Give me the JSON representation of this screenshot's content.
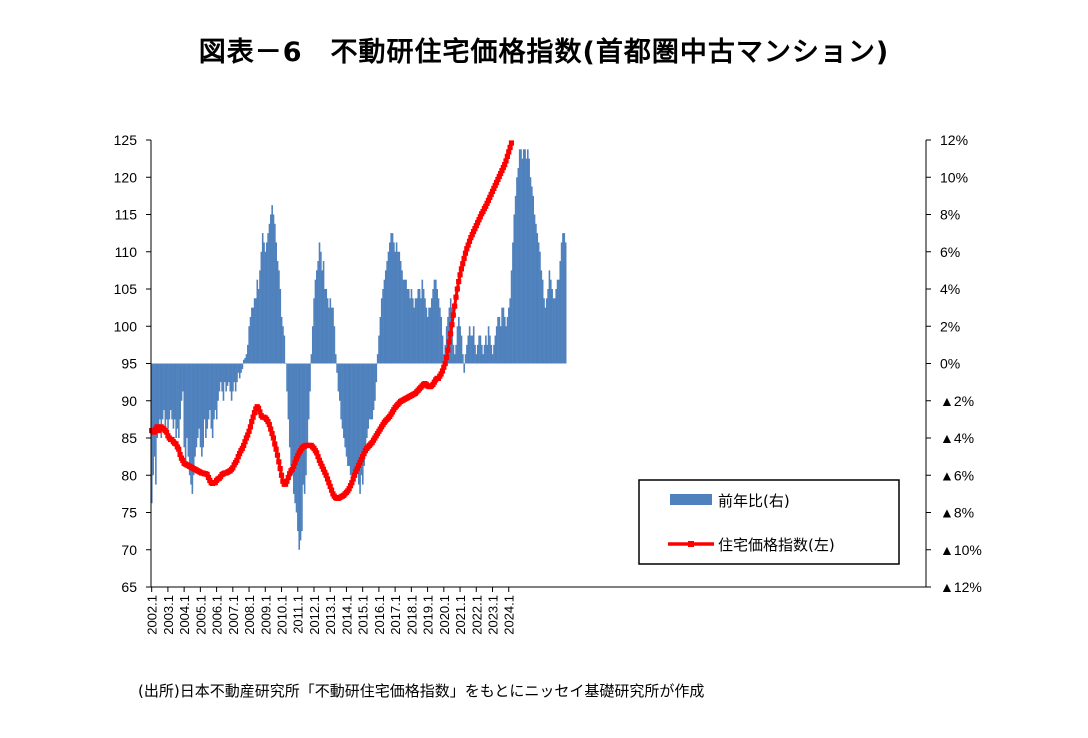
{
  "title": "図表－6　不動研住宅価格指数(首都圏中古マンション)",
  "source_note": "(出所)日本不動産研究所「不動研住宅価格指数」をもとにニッセイ基礎研究所が作成",
  "colors": {
    "bar": "#4f81bd",
    "line": "#ff0000",
    "grid": "#000000"
  },
  "chart_data": {
    "type": "bar+line",
    "x_labels": [
      "2002.1",
      "2003.1",
      "2004.1",
      "2005.1",
      "2006.1",
      "2007.1",
      "2008.1",
      "2009.1",
      "2010.1",
      "2011.1",
      "2012.1",
      "2013.1",
      "2014.1",
      "2015.1",
      "2016.1",
      "2017.1",
      "2018.1",
      "2019.1",
      "2020.1",
      "2021.1",
      "2022.1",
      "2023.1",
      "2024.1"
    ],
    "left_axis": {
      "ticks": [
        "65",
        "70",
        "75",
        "80",
        "85",
        "90",
        "95",
        "100",
        "105",
        "110",
        "115",
        "120",
        "125"
      ],
      "ylim": [
        65,
        125
      ]
    },
    "right_axis": {
      "ticks": [
        "▲12%",
        "▲10%",
        "▲8%",
        "▲6%",
        "▲4%",
        "▲2%",
        "0%",
        "2%",
        "4%",
        "6%",
        "8%",
        "10%",
        "12%"
      ],
      "ylim": [
        -12,
        12
      ]
    },
    "legend": {
      "position": "bottom-right",
      "entries": [
        "前年比(右)",
        "住宅価格指数(左)"
      ]
    },
    "series": [
      {
        "name": "前年比(右)",
        "type": "bar",
        "axis": "right",
        "unit": "%",
        "start": "2002.1",
        "frequency": "monthly",
        "values": [
          -7.5,
          -6.0,
          -5.0,
          -6.5,
          -4.0,
          -3.5,
          -3.0,
          -4.0,
          -3.0,
          -2.5,
          -3.5,
          -3.0,
          -3.5,
          -3.0,
          -2.5,
          -3.0,
          -3.5,
          -3.0,
          -4.0,
          -3.5,
          -4.0,
          -3.0,
          -2.0,
          -1.5,
          -4.5,
          -5.5,
          -4.0,
          -5.0,
          -6.0,
          -6.5,
          -7.0,
          -6.0,
          -5.0,
          -4.5,
          -4.0,
          -3.5,
          -4.5,
          -5.0,
          -4.5,
          -3.0,
          -4.0,
          -3.5,
          -3.0,
          -2.5,
          -3.5,
          -4.0,
          -3.0,
          -2.5,
          -3.0,
          -2.0,
          -1.5,
          -1.0,
          -1.5,
          -2.0,
          -1.0,
          -1.5,
          -1.2,
          -1.0,
          -1.5,
          -2.0,
          -1.5,
          -1.0,
          -1.5,
          -1.0,
          -0.5,
          -0.8,
          -0.5,
          -0.3,
          0.2,
          0.3,
          0.5,
          1.0,
          2.0,
          2.5,
          3.0,
          3.0,
          3.5,
          3.5,
          4.5,
          4.0,
          5.0,
          6.0,
          7.0,
          6.5,
          6.0,
          6.5,
          7.0,
          7.5,
          8.0,
          8.5,
          8.0,
          7.5,
          6.5,
          5.5,
          5.0,
          4.0,
          2.5,
          2.0,
          1.5,
          0.0,
          -1.5,
          -3.0,
          -4.5,
          -5.5,
          -6.0,
          -7.0,
          -7.5,
          -8.0,
          -9.0,
          -10.0,
          -9.5,
          -9.0,
          -6.5,
          -7.0,
          -6.0,
          -4.5,
          -3.0,
          -1.5,
          0.5,
          2.0,
          3.5,
          4.5,
          5.0,
          5.5,
          6.5,
          6.0,
          5.0,
          5.5,
          4.0,
          4.0,
          3.5,
          3.0,
          3.5,
          3.0,
          3.0,
          2.0,
          0.5,
          -0.5,
          -1.5,
          -2.0,
          -3.0,
          -3.5,
          -4.0,
          -4.5,
          -5.0,
          -5.5,
          -5.5,
          -6.0,
          -6.5,
          -6.0,
          -6.0,
          -5.5,
          -5.5,
          -6.5,
          -7.0,
          -6.0,
          -6.5,
          -5.5,
          -4.5,
          -4.0,
          -3.5,
          -3.0,
          -3.0,
          -3.0,
          -2.5,
          -2.0,
          -1.0,
          0.5,
          1.5,
          2.5,
          3.5,
          4.0,
          4.5,
          5.0,
          5.5,
          6.0,
          6.5,
          7.0,
          7.0,
          6.5,
          6.0,
          6.5,
          6.0,
          6.0,
          5.5,
          5.0,
          4.5,
          4.5,
          4.5,
          4.0,
          4.0,
          3.5,
          4.0,
          3.5,
          3.0,
          3.5,
          3.5,
          4.0,
          4.0,
          3.5,
          4.5,
          4.0,
          3.5,
          3.0,
          2.5,
          3.0,
          3.0,
          3.5,
          4.0,
          4.5,
          4.5,
          4.0,
          3.5,
          3.0,
          2.5,
          1.5,
          0.5,
          1.0,
          2.0,
          2.5,
          3.0,
          3.5,
          3.0,
          1.0,
          0.5,
          1.0,
          2.0,
          2.5,
          2.0,
          1.5,
          0.5,
          -0.5,
          0.5,
          1.0,
          1.5,
          2.0,
          1.5,
          1.5,
          2.0,
          1.0,
          0.5,
          1.0,
          1.5,
          1.5,
          1.0,
          0.5,
          1.0,
          1.5,
          1.0,
          2.0,
          1.5,
          1.0,
          0.5,
          1.0,
          1.5,
          2.0,
          2.5,
          2.5,
          2.0,
          3.0,
          3.0,
          2.5,
          2.0,
          2.5,
          3.0,
          3.5,
          5.0,
          6.5,
          8.0,
          9.0,
          10.0,
          10.5,
          11.5,
          11.5,
          11.0,
          11.5,
          11.5,
          11.0,
          11.5,
          11.0,
          10.0,
          9.5,
          9.0,
          8.0,
          7.5,
          7.0,
          6.5,
          6.0,
          5.0,
          4.5,
          3.5,
          3.0,
          3.5,
          4.0,
          5.0,
          4.5,
          4.0,
          3.5,
          3.5,
          4.0,
          4.5,
          4.5,
          5.5,
          6.5,
          7.0,
          7.0,
          6.5
        ]
      },
      {
        "name": "住宅価格指数(左)",
        "type": "line",
        "axis": "left",
        "start": "2002.1",
        "frequency": "monthly",
        "values": [
          86.0,
          85.8,
          85.8,
          86.2,
          86.5,
          86.0,
          86.2,
          86.5,
          86.3,
          86.2,
          86.0,
          85.8,
          85.3,
          85.0,
          84.8,
          84.8,
          84.5,
          84.3,
          84.2,
          83.8,
          83.5,
          82.8,
          82.3,
          82.0,
          81.6,
          81.5,
          81.4,
          81.3,
          81.2,
          81.1,
          81.0,
          80.9,
          80.8,
          80.7,
          80.6,
          80.5,
          80.4,
          80.3,
          80.3,
          80.2,
          80.2,
          80.1,
          79.7,
          79.3,
          79.0,
          78.9,
          79.0,
          79.0,
          79.3,
          79.5,
          79.6,
          79.8,
          80.1,
          80.2,
          80.3,
          80.3,
          80.4,
          80.5,
          80.6,
          80.8,
          81.0,
          81.4,
          81.7,
          82.0,
          82.5,
          82.9,
          83.3,
          83.6,
          84.0,
          84.5,
          85.0,
          85.4,
          85.9,
          86.5,
          87.2,
          87.8,
          88.4,
          88.9,
          89.2,
          89.0,
          88.5,
          88.0,
          87.8,
          87.8,
          87.7,
          87.5,
          87.2,
          86.8,
          86.2,
          85.6,
          85.0,
          84.2,
          83.5,
          82.7,
          81.8,
          80.9,
          80.0,
          79.2,
          78.8,
          78.8,
          79.2,
          79.7,
          80.2,
          80.6,
          80.8,
          81.2,
          81.7,
          82.2,
          82.6,
          83.0,
          83.3,
          83.6,
          83.8,
          83.9,
          84.0,
          84.0,
          84.0,
          84.0,
          84.0,
          83.8,
          83.6,
          83.3,
          83.0,
          82.5,
          82.0,
          81.6,
          81.2,
          80.8,
          80.4,
          80.0,
          79.5,
          79.0,
          78.5,
          78.0,
          77.5,
          77.2,
          77.0,
          76.9,
          76.9,
          77.0,
          77.1,
          77.2,
          77.3,
          77.5,
          77.7,
          77.9,
          78.2,
          78.6,
          79.0,
          79.5,
          80.0,
          80.5,
          80.9,
          81.3,
          81.7,
          82.1,
          82.5,
          82.9,
          83.3,
          83.6,
          83.8,
          84.0,
          84.2,
          84.4,
          84.7,
          85.0,
          85.3,
          85.6,
          85.9,
          86.2,
          86.5,
          86.8,
          87.1,
          87.3,
          87.5,
          87.7,
          87.9,
          88.2,
          88.5,
          88.8,
          89.1,
          89.3,
          89.5,
          89.7,
          89.9,
          90.0,
          90.1,
          90.2,
          90.3,
          90.4,
          90.5,
          90.6,
          90.7,
          90.8,
          90.9,
          91.0,
          91.2,
          91.4,
          91.6,
          91.8,
          92.0,
          92.2,
          92.3,
          92.2,
          92.0,
          91.9,
          91.9,
          92.0,
          92.2,
          92.5,
          92.8,
          93.0,
          93.0,
          93.3,
          93.6,
          94.0,
          94.5,
          95.0,
          95.8,
          96.8,
          97.9,
          99.0,
          100.2,
          101.5,
          102.7,
          103.9,
          105.0,
          106.0,
          106.9,
          107.7,
          108.4,
          109.1,
          109.8,
          110.4,
          110.9,
          111.4,
          111.9,
          112.3,
          112.7,
          113.1,
          113.5,
          113.9,
          114.3,
          114.7,
          115.1,
          115.4,
          115.8,
          116.1,
          116.5,
          116.9,
          117.3,
          117.7,
          118.1,
          118.5,
          118.9,
          119.3,
          119.7,
          120.1,
          120.5,
          120.9,
          121.3,
          121.7,
          122.2,
          122.8,
          123.4,
          124.0,
          124.6
        ]
      }
    ]
  }
}
